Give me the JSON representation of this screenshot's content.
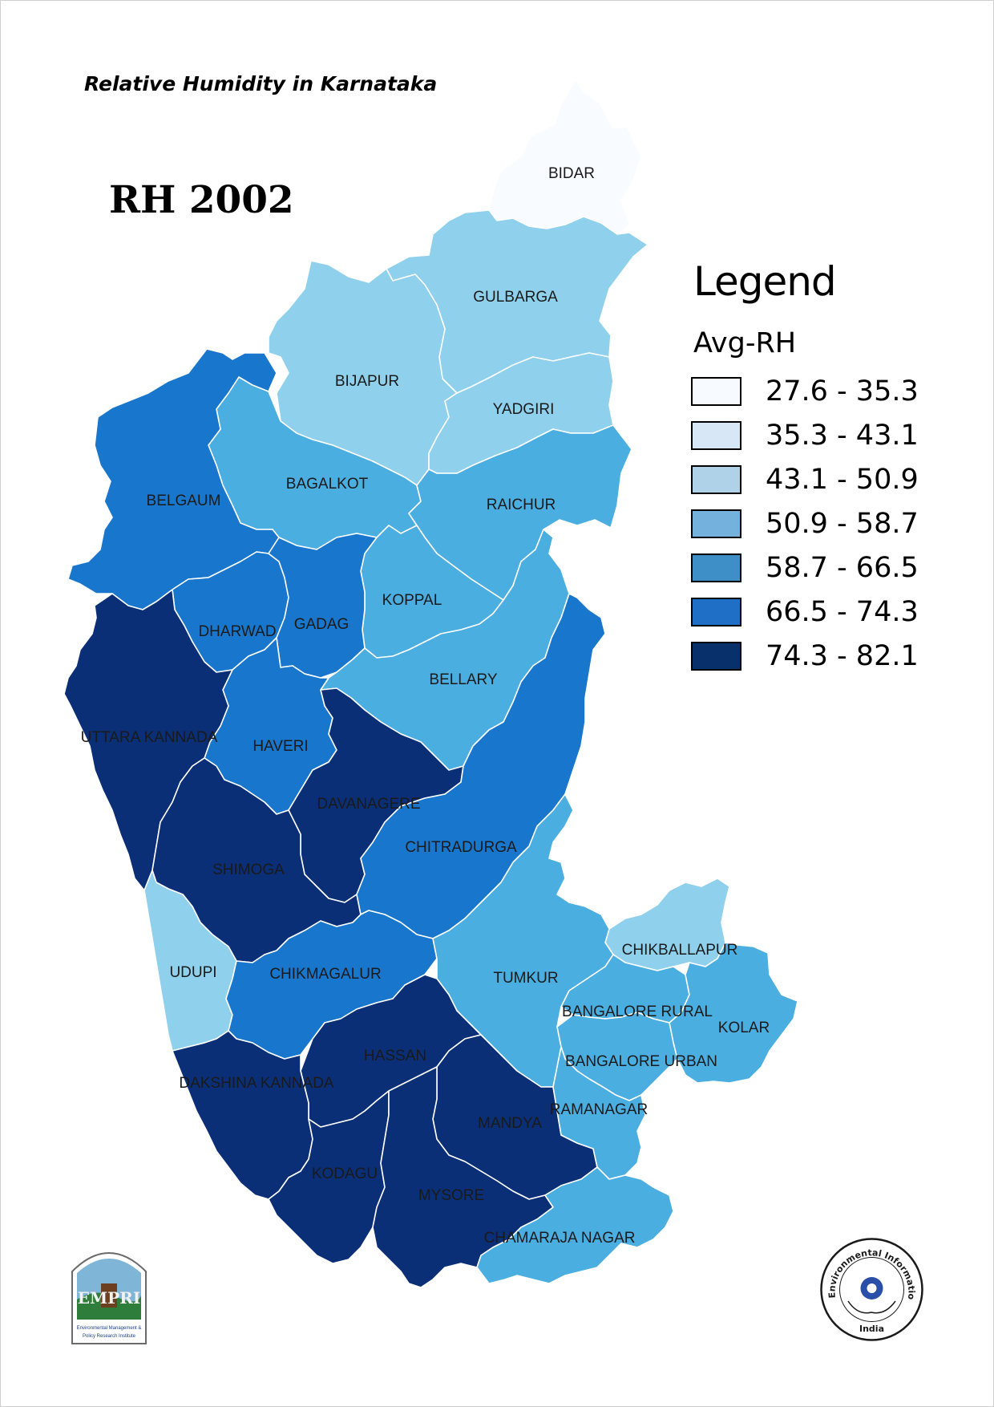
{
  "subtitle": "Relative Humidity in Karnataka",
  "title": "RH 2002",
  "legend": {
    "title": "Legend",
    "field": "Avg-RH",
    "classes": [
      {
        "range": "27.6 - 35.3",
        "color": "#f7fbff"
      },
      {
        "range": "35.3 - 43.1",
        "color": "#d8e7f5"
      },
      {
        "range": "43.1 - 50.9",
        "color": "#b0d2e8"
      },
      {
        "range": "50.9 - 58.7",
        "color": "#74b2dd"
      },
      {
        "range": "58.7 - 66.5",
        "color": "#3e8ec8"
      },
      {
        "range": "66.5 - 74.3",
        "color": "#1f6fc6"
      },
      {
        "range": "74.3 - 82.1",
        "color": "#08306b"
      }
    ]
  },
  "map_colors": {
    "bidar": "#f8fbff",
    "light": "#8fd1ec",
    "medium": "#4aaee0",
    "dark": "#1877cc",
    "darkest": "#0a2f76"
  },
  "districts": {
    "bidar": "BIDAR",
    "gulbarga": "GULBARGA",
    "bijapur": "BIJAPUR",
    "yadgiri": "YADGIRI",
    "bagalkot": "BAGALKOT",
    "raichur": "RAICHUR",
    "belgaum": "BELGAUM",
    "koppal": "KOPPAL",
    "dharwad": "DHARWAD",
    "gadag": "GADAG",
    "bellary": "BELLARY",
    "uttara_kannada": "UTTARA KANNADA",
    "haveri": "HAVERI",
    "davanagere": "DAVANAGERE",
    "chitradurga": "CHITRADURGA",
    "shimoga": "SHIMOGA",
    "udupi": "UDUPI",
    "chikmagalur": "CHIKMAGALUR",
    "chikballapur": "CHIKBALLAPUR",
    "tumkur": "TUMKUR",
    "bangalore_rural": "BANGALORE RURAL",
    "kolar": "KOLAR",
    "hassan": "HASSAN",
    "bangalore_urban": "BANGALORE URBAN",
    "dakshina_kannada": "DAKSHINA KANNADA",
    "mandya": "MANDYA",
    "ramanagar": "RAMANAGAR",
    "kodagu": "KODAGU",
    "mysore": "MYSORE",
    "chamaraja_nagar": "CHAMARAJA NAGAR"
  },
  "logos": {
    "left": {
      "mark": "EMPRI",
      "caption_line1": "Environmental Management &",
      "caption_line2": "Policy Research Institute",
      "icon": "empri-logo-icon"
    },
    "right": {
      "ring_text": "Environmental Information System",
      "country": "India",
      "icon": "envis-logo-icon"
    }
  }
}
